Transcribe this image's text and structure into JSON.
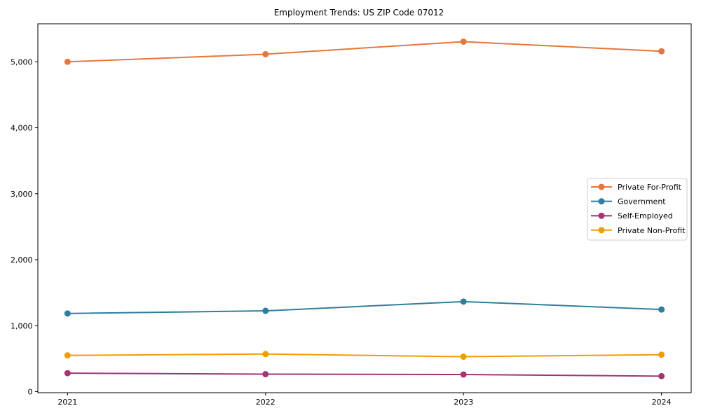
{
  "chart_data": {
    "type": "line",
    "title": "Employment Trends: US ZIP Code 07012",
    "x": [
      2021,
      2022,
      2023,
      2024
    ],
    "x_tick_labels": [
      "2021",
      "2022",
      "2023",
      "2024"
    ],
    "series": [
      {
        "name": "Private For-Profit",
        "color": "#E5773C",
        "values": [
          5000,
          5115,
          5305,
          5160
        ]
      },
      {
        "name": "Government",
        "color": "#2E7F9E",
        "values": [
          1185,
          1225,
          1365,
          1245
        ]
      },
      {
        "name": "Self-Employed",
        "color": "#A23574",
        "values": [
          280,
          265,
          260,
          235
        ]
      },
      {
        "name": "Private Non-Profit",
        "color": "#F09C06",
        "values": [
          550,
          570,
          530,
          560
        ]
      }
    ],
    "yticks": [
      0,
      1000,
      2000,
      3000,
      4000,
      5000
    ],
    "ytick_labels": [
      "0",
      "1,000",
      "2,000",
      "3,000",
      "4,000",
      "5,000"
    ],
    "xlim": [
      2020.85,
      2024.15
    ],
    "ylim": [
      -16,
      5576
    ],
    "grid": false,
    "legend_position": "center right",
    "xlabel": "",
    "ylabel": ""
  }
}
